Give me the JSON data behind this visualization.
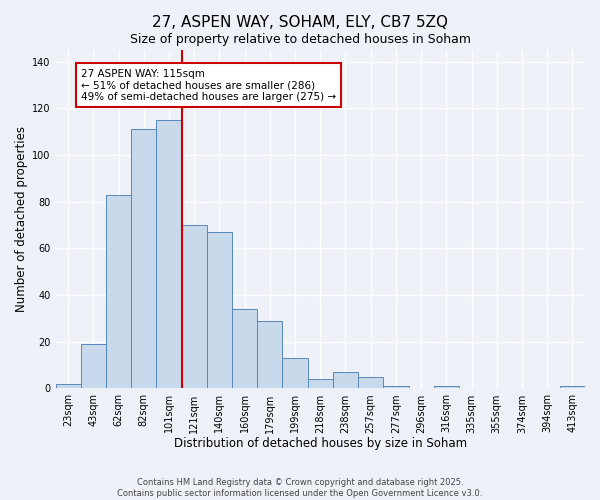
{
  "title": "27, ASPEN WAY, SOHAM, ELY, CB7 5ZQ",
  "subtitle": "Size of property relative to detached houses in Soham",
  "xlabel": "Distribution of detached houses by size in Soham",
  "ylabel": "Number of detached properties",
  "bar_labels": [
    "23sqm",
    "43sqm",
    "62sqm",
    "82sqm",
    "101sqm",
    "121sqm",
    "140sqm",
    "160sqm",
    "179sqm",
    "199sqm",
    "218sqm",
    "238sqm",
    "257sqm",
    "277sqm",
    "296sqm",
    "316sqm",
    "335sqm",
    "355sqm",
    "374sqm",
    "394sqm",
    "413sqm"
  ],
  "bar_values": [
    2,
    19,
    83,
    111,
    115,
    70,
    67,
    34,
    29,
    13,
    4,
    7,
    5,
    1,
    0,
    1,
    0,
    0,
    0,
    0,
    1
  ],
  "bar_color": "#c9d9ec",
  "bar_edgecolor": "#5588bb",
  "vline_pos": 4.5,
  "vline_color": "#cc0000",
  "ylim_max": 145,
  "annotation_text": "27 ASPEN WAY: 115sqm\n← 51% of detached houses are smaller (286)\n49% of semi-detached houses are larger (275) →",
  "annotation_box_edgecolor": "#cc0000",
  "annotation_box_facecolor": "#ffffff",
  "footer1": "Contains HM Land Registry data © Crown copyright and database right 2025.",
  "footer2": "Contains public sector information licensed under the Open Government Licence v3.0.",
  "bg_color": "#eef2f8",
  "grid_color": "#ffffff",
  "title_fontsize": 11,
  "axis_label_fontsize": 8.5,
  "tick_fontsize": 7,
  "annotation_fontsize": 7.5,
  "footer_fontsize": 6.0
}
